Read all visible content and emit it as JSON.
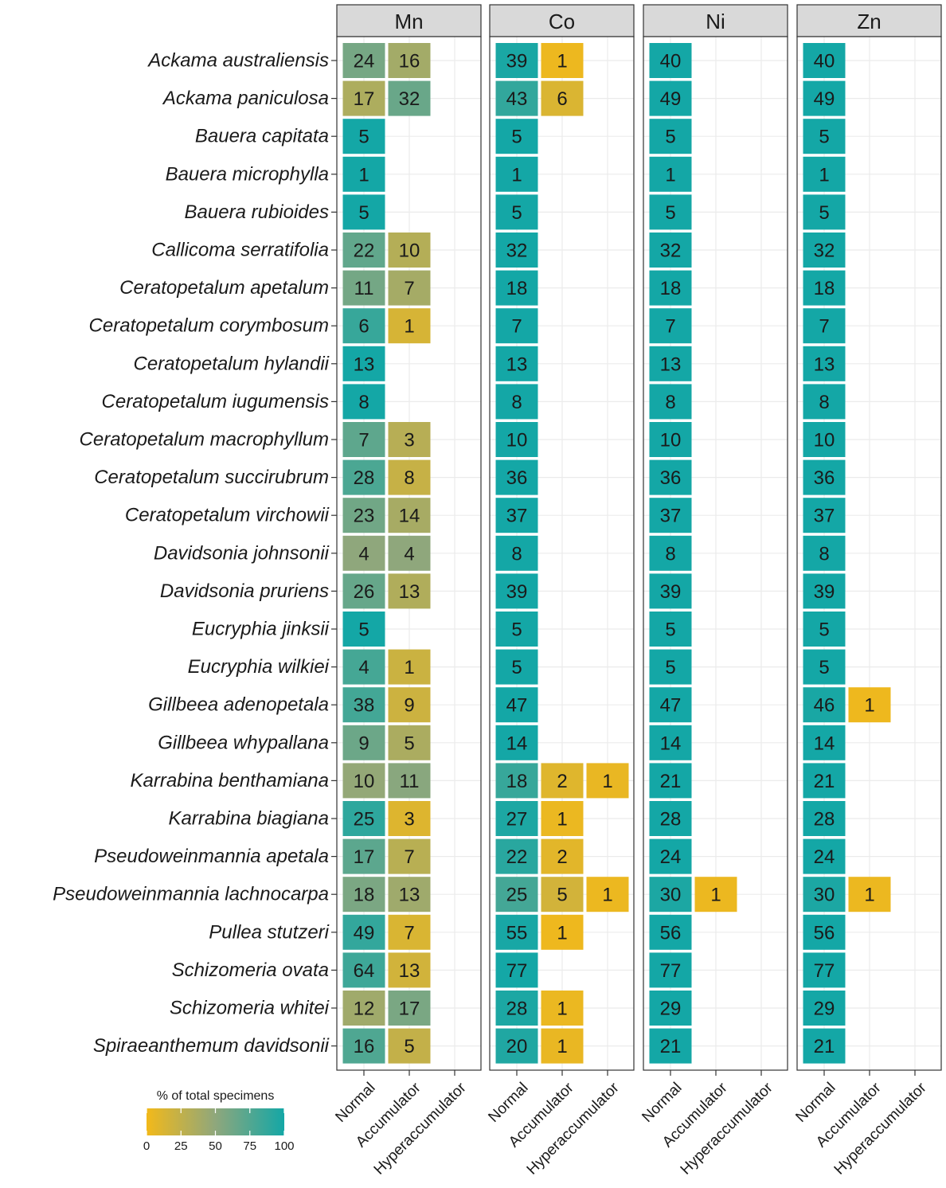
{
  "chart_data": {
    "type": "heatmap",
    "facets": [
      "Mn",
      "Co",
      "Ni",
      "Zn"
    ],
    "columns": [
      "Normal",
      "Accumulator",
      "Hyperaccumulator"
    ],
    "species": [
      "Ackama australiensis",
      "Ackama paniculosa",
      "Bauera capitata",
      "Bauera microphylla",
      "Bauera rubioides",
      "Callicoma serratifolia",
      "Ceratopetalum apetalum",
      "Ceratopetalum corymbosum",
      "Ceratopetalum hylandii",
      "Ceratopetalum iugumensis",
      "Ceratopetalum macrophyllum",
      "Ceratopetalum succirubrum",
      "Ceratopetalum virchowii",
      "Davidsonia johnsonii",
      "Davidsonia pruriens",
      "Eucryphia jinksii",
      "Eucryphia wilkiei",
      "Gillbeea adenopetala",
      "Gillbeea whypallana",
      "Karrabina benthamiana",
      "Karrabina biagiana",
      "Pseudoweinmannia apetala",
      "Pseudoweinmannia lachnocarpa",
      "Pullea stutzeri",
      "Schizomeria ovata",
      "Schizomeria whitei",
      "Spiraeanthemum davidsonii"
    ],
    "values": {
      "Mn": [
        [
          24,
          16,
          null
        ],
        [
          17,
          32,
          null
        ],
        [
          5,
          null,
          null
        ],
        [
          1,
          null,
          null
        ],
        [
          5,
          null,
          null
        ],
        [
          22,
          10,
          null
        ],
        [
          11,
          7,
          null
        ],
        [
          6,
          1,
          null
        ],
        [
          13,
          null,
          null
        ],
        [
          8,
          null,
          null
        ],
        [
          7,
          3,
          null
        ],
        [
          28,
          8,
          null
        ],
        [
          23,
          14,
          null
        ],
        [
          4,
          4,
          null
        ],
        [
          26,
          13,
          null
        ],
        [
          5,
          null,
          null
        ],
        [
          4,
          1,
          null
        ],
        [
          38,
          9,
          null
        ],
        [
          9,
          5,
          null
        ],
        [
          10,
          11,
          null
        ],
        [
          25,
          3,
          null
        ],
        [
          17,
          7,
          null
        ],
        [
          18,
          13,
          null
        ],
        [
          49,
          7,
          null
        ],
        [
          64,
          13,
          null
        ],
        [
          12,
          17,
          null
        ],
        [
          16,
          5,
          null
        ]
      ],
      "Co": [
        [
          39,
          1,
          null
        ],
        [
          43,
          6,
          null
        ],
        [
          5,
          null,
          null
        ],
        [
          1,
          null,
          null
        ],
        [
          5,
          null,
          null
        ],
        [
          32,
          null,
          null
        ],
        [
          18,
          null,
          null
        ],
        [
          7,
          null,
          null
        ],
        [
          13,
          null,
          null
        ],
        [
          8,
          null,
          null
        ],
        [
          10,
          null,
          null
        ],
        [
          36,
          null,
          null
        ],
        [
          37,
          null,
          null
        ],
        [
          8,
          null,
          null
        ],
        [
          39,
          null,
          null
        ],
        [
          5,
          null,
          null
        ],
        [
          5,
          null,
          null
        ],
        [
          47,
          null,
          null
        ],
        [
          14,
          null,
          null
        ],
        [
          18,
          2,
          1
        ],
        [
          27,
          1,
          null
        ],
        [
          22,
          2,
          null
        ],
        [
          25,
          5,
          1
        ],
        [
          55,
          1,
          null
        ],
        [
          77,
          null,
          null
        ],
        [
          28,
          1,
          null
        ],
        [
          20,
          1,
          null
        ]
      ],
      "Ni": [
        [
          40,
          null,
          null
        ],
        [
          49,
          null,
          null
        ],
        [
          5,
          null,
          null
        ],
        [
          1,
          null,
          null
        ],
        [
          5,
          null,
          null
        ],
        [
          32,
          null,
          null
        ],
        [
          18,
          null,
          null
        ],
        [
          7,
          null,
          null
        ],
        [
          13,
          null,
          null
        ],
        [
          8,
          null,
          null
        ],
        [
          10,
          null,
          null
        ],
        [
          36,
          null,
          null
        ],
        [
          37,
          null,
          null
        ],
        [
          8,
          null,
          null
        ],
        [
          39,
          null,
          null
        ],
        [
          5,
          null,
          null
        ],
        [
          5,
          null,
          null
        ],
        [
          47,
          null,
          null
        ],
        [
          14,
          null,
          null
        ],
        [
          21,
          null,
          null
        ],
        [
          28,
          null,
          null
        ],
        [
          24,
          null,
          null
        ],
        [
          30,
          1,
          null
        ],
        [
          56,
          null,
          null
        ],
        [
          77,
          null,
          null
        ],
        [
          29,
          null,
          null
        ],
        [
          21,
          null,
          null
        ]
      ],
      "Zn": [
        [
          40,
          null,
          null
        ],
        [
          49,
          null,
          null
        ],
        [
          5,
          null,
          null
        ],
        [
          1,
          null,
          null
        ],
        [
          5,
          null,
          null
        ],
        [
          32,
          null,
          null
        ],
        [
          18,
          null,
          null
        ],
        [
          7,
          null,
          null
        ],
        [
          13,
          null,
          null
        ],
        [
          8,
          null,
          null
        ],
        [
          10,
          null,
          null
        ],
        [
          36,
          null,
          null
        ],
        [
          37,
          null,
          null
        ],
        [
          8,
          null,
          null
        ],
        [
          39,
          null,
          null
        ],
        [
          5,
          null,
          null
        ],
        [
          5,
          null,
          null
        ],
        [
          46,
          1,
          null
        ],
        [
          14,
          null,
          null
        ],
        [
          21,
          null,
          null
        ],
        [
          28,
          null,
          null
        ],
        [
          24,
          null,
          null
        ],
        [
          30,
          1,
          null
        ],
        [
          56,
          null,
          null
        ],
        [
          77,
          null,
          null
        ],
        [
          29,
          null,
          null
        ],
        [
          21,
          null,
          null
        ]
      ]
    },
    "fill_variable": "percent of total specimens per species",
    "legend": {
      "title": "% of total specimens",
      "ticks": [
        0,
        25,
        50,
        75,
        100
      ],
      "range": [
        0,
        100
      ],
      "low_color": "#F2B91A",
      "mid_color": "#8FA77C",
      "high_color": "#14A7A6",
      "placement": "bottom-left"
    },
    "grid": true,
    "panel_strip_color": "#d9d9d9",
    "gridline_color": "#ebebeb"
  }
}
